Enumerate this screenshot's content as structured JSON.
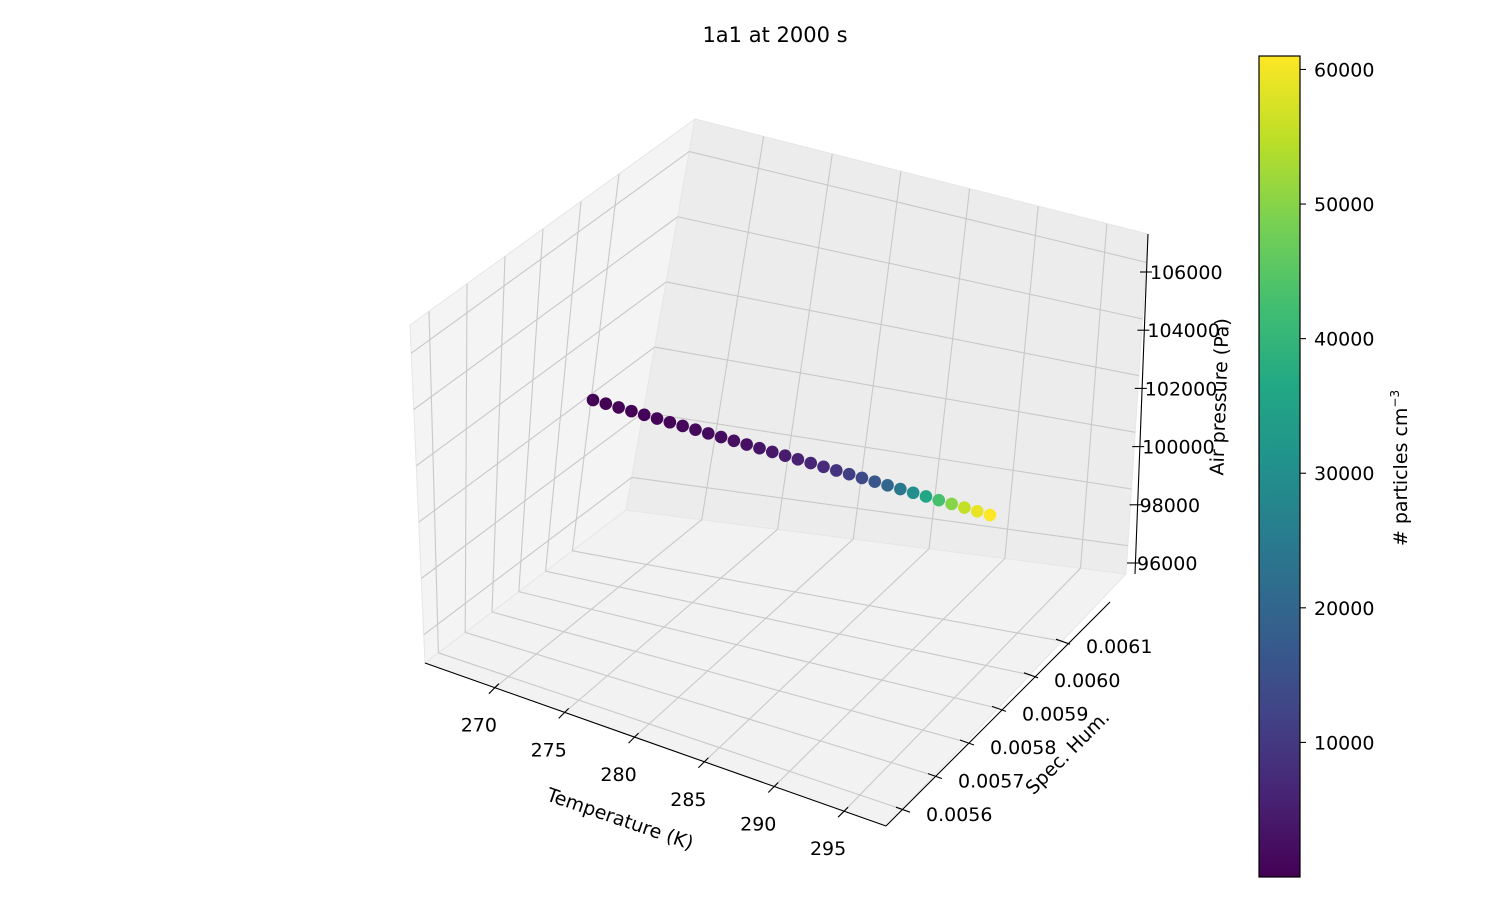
{
  "chart_data": {
    "type": "scatter",
    "projection": "3d",
    "title": "1a1 at 2000 s",
    "xlabel": "Temperature (K)",
    "ylabel": "Spec. Hum.",
    "zlabel": "Air pressure (Pa)",
    "xticks": [
      "270",
      "275",
      "280",
      "285",
      "290",
      "295"
    ],
    "yticks": [
      "0.0056",
      "0.0057",
      "0.0058",
      "0.0059",
      "0.0060",
      "0.0061"
    ],
    "zticks": [
      "96000",
      "98000",
      "100000",
      "102000",
      "104000",
      "106000"
    ],
    "colorbar": {
      "label": "# particles cm",
      "label_superscript": "−3",
      "ticks": [
        "10000",
        "20000",
        "30000",
        "40000",
        "50000",
        "60000"
      ],
      "range": [
        0,
        61000
      ],
      "colormap": "viridis"
    },
    "grid": true,
    "points": [
      {
        "x": 266.0,
        "y": 0.00565,
        "z": 100000,
        "c": 100
      },
      {
        "x": 267.0,
        "y": 0.00567,
        "z": 100000,
        "c": 200
      },
      {
        "x": 268.0,
        "y": 0.00569,
        "z": 100000,
        "c": 300
      },
      {
        "x": 269.0,
        "y": 0.00571,
        "z": 100000,
        "c": 400
      },
      {
        "x": 270.0,
        "y": 0.00573,
        "z": 100000,
        "c": 500
      },
      {
        "x": 271.0,
        "y": 0.00575,
        "z": 100000,
        "c": 700
      },
      {
        "x": 272.0,
        "y": 0.00577,
        "z": 100000,
        "c": 900
      },
      {
        "x": 273.0,
        "y": 0.00579,
        "z": 100000,
        "c": 1100
      },
      {
        "x": 274.0,
        "y": 0.00581,
        "z": 100000,
        "c": 1400
      },
      {
        "x": 275.0,
        "y": 0.00583,
        "z": 100000,
        "c": 1700
      },
      {
        "x": 276.0,
        "y": 0.00585,
        "z": 100000,
        "c": 2000
      },
      {
        "x": 277.0,
        "y": 0.00587,
        "z": 100000,
        "c": 2400
      },
      {
        "x": 278.0,
        "y": 0.00589,
        "z": 100000,
        "c": 2800
      },
      {
        "x": 279.0,
        "y": 0.00591,
        "z": 100000,
        "c": 3300
      },
      {
        "x": 280.0,
        "y": 0.00593,
        "z": 100000,
        "c": 3900
      },
      {
        "x": 281.0,
        "y": 0.00595,
        "z": 100000,
        "c": 4600
      },
      {
        "x": 282.0,
        "y": 0.00597,
        "z": 100000,
        "c": 5500
      },
      {
        "x": 283.0,
        "y": 0.00599,
        "z": 100000,
        "c": 6500
      },
      {
        "x": 284.0,
        "y": 0.00601,
        "z": 100000,
        "c": 7700
      },
      {
        "x": 285.0,
        "y": 0.00603,
        "z": 100000,
        "c": 9200
      },
      {
        "x": 286.0,
        "y": 0.00605,
        "z": 100000,
        "c": 11000
      },
      {
        "x": 287.0,
        "y": 0.00607,
        "z": 100000,
        "c": 13500
      },
      {
        "x": 288.0,
        "y": 0.00609,
        "z": 100000,
        "c": 16500
      },
      {
        "x": 289.0,
        "y": 0.00611,
        "z": 100000,
        "c": 20000
      },
      {
        "x": 290.0,
        "y": 0.00613,
        "z": 100000,
        "c": 24500
      },
      {
        "x": 291.0,
        "y": 0.00615,
        "z": 100000,
        "c": 30000
      },
      {
        "x": 292.0,
        "y": 0.00617,
        "z": 100000,
        "c": 36000
      },
      {
        "x": 293.0,
        "y": 0.00619,
        "z": 100000,
        "c": 43000
      },
      {
        "x": 294.0,
        "y": 0.00621,
        "z": 100000,
        "c": 50000
      },
      {
        "x": 295.0,
        "y": 0.00623,
        "z": 100000,
        "c": 55500
      },
      {
        "x": 296.0,
        "y": 0.00625,
        "z": 100000,
        "c": 59000
      },
      {
        "x": 296.7,
        "y": 0.00626,
        "z": 100000,
        "c": 61000
      }
    ]
  }
}
